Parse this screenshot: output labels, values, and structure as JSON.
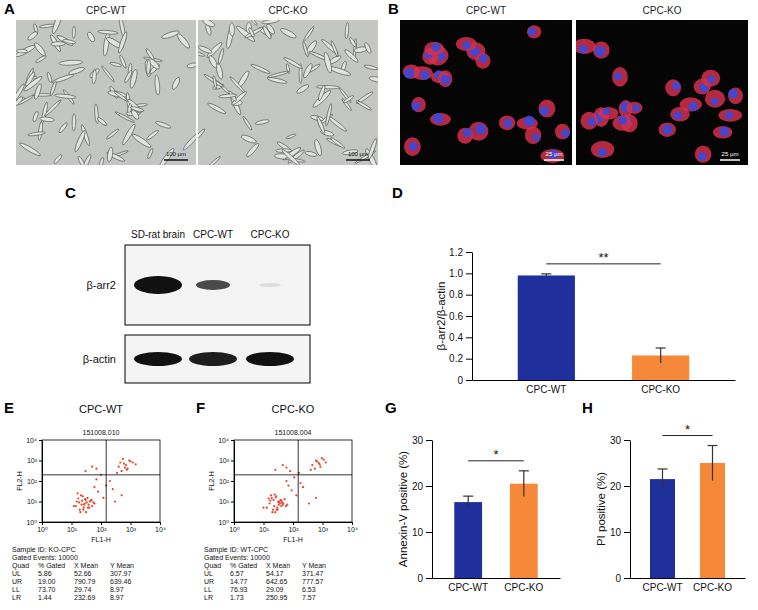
{
  "images": [
    {
      "panel": "A",
      "titles": [
        "CPC-WT",
        "CPC-KO"
      ],
      "scale_bar": "100 μm"
    },
    {
      "panel": "B",
      "titles": [
        "CPC-WT",
        "CPC-KO"
      ],
      "scale_bar": "25 μm"
    }
  ],
  "blot": {
    "panel": "C",
    "lanes": [
      "SD-rat brain",
      "CPC-WT",
      "CPC-KO"
    ],
    "rows": [
      "β-arr2",
      "β-actin"
    ]
  },
  "chart_data": [
    {
      "panel": "D",
      "type": "bar",
      "categories": [
        "CPC-WT",
        "CPC-KO"
      ],
      "values": [
        0.98,
        0.23
      ],
      "errors": [
        0.015,
        0.07
      ],
      "colors": [
        "#1f2f9c",
        "#f58839"
      ],
      "ylabel": "β-arr2/β-actin",
      "ylim": [
        0,
        1.2
      ],
      "yticks": [
        0,
        0.2,
        0.4,
        0.6,
        0.8,
        {
          "value": 1,
          "label": "1.0"
        },
        1.2
      ],
      "annotations": [
        "**"
      ]
    },
    {
      "panel": "E",
      "type": "scatter",
      "title": "CPC-WT",
      "subtitle": "151008.010",
      "xlabel": "FL1-H",
      "ylabel": "FL2-H",
      "log": true,
      "color": "#e8432e",
      "xlim": [
        1,
        10000
      ],
      "ylim": [
        1,
        10000
      ],
      "xticks": [
        {
          "value": 1,
          "label": "10⁰"
        },
        {
          "value": 10,
          "label": "10¹"
        },
        {
          "value": 100,
          "label": "10²"
        },
        {
          "value": 1000,
          "label": "10³"
        },
        {
          "value": 10000,
          "label": "10⁴"
        }
      ],
      "yticks": [
        {
          "value": 1,
          "label": "10⁰"
        },
        {
          "value": 10,
          "label": "10¹"
        },
        {
          "value": 100,
          "label": "10²"
        },
        {
          "value": 1000,
          "label": "10³"
        },
        {
          "value": 10000,
          "label": "10⁴"
        }
      ],
      "x": [
        12,
        18,
        25,
        30,
        22,
        15,
        40,
        35,
        28,
        20,
        45,
        50,
        17,
        26,
        33,
        38,
        24,
        19,
        60,
        14,
        29,
        42,
        21,
        36,
        55,
        31,
        23,
        27,
        16,
        48,
        80,
        120,
        150,
        200,
        60,
        100,
        250,
        70,
        400,
        600,
        800,
        1000,
        500,
        700,
        900,
        1200,
        350,
        650,
        1500,
        550,
        750,
        450,
        30,
        50,
        70,
        300,
        500
      ],
      "values": [
        6,
        9,
        4,
        12,
        7,
        10,
        5,
        15,
        8,
        3,
        11,
        6,
        14,
        5,
        9,
        7,
        18,
        4,
        8,
        6,
        13,
        10,
        20,
        5,
        9,
        3,
        11,
        7,
        25,
        12,
        30,
        15,
        60,
        100,
        50,
        200,
        40,
        120,
        500,
        700,
        400,
        900,
        300,
        600,
        1000,
        800,
        250,
        450,
        650,
        1200,
        350,
        800,
        300,
        500,
        400,
        10,
        20
      ],
      "gates": {
        "x": 150,
        "y": 200
      },
      "stats": {
        "lines": [
          "Sample ID: KO-CPC",
          "Gated Events: 10000"
        ],
        "header": [
          "Quad",
          "% Gated",
          "X Mean",
          "Y Mean"
        ],
        "rows": [
          [
            "UL",
            "5.86",
            "52.66",
            "307.97"
          ],
          [
            "UR",
            "19.00",
            "790.79",
            "639.46"
          ],
          [
            "LL",
            "73.70",
            "29.74",
            "8.97"
          ],
          [
            "LR",
            "1.44",
            "232.69",
            "8.97"
          ]
        ]
      }
    },
    {
      "panel": "F",
      "type": "scatter",
      "title": "CPC-KO",
      "subtitle": "151008.004",
      "xlabel": "FL1-H",
      "ylabel": "FL2-H",
      "log": true,
      "color": "#e8432e",
      "xlim": [
        1,
        10000
      ],
      "ylim": [
        1,
        10000
      ],
      "xticks": [
        {
          "value": 1,
          "label": "10⁰"
        },
        {
          "value": 10,
          "label": "10¹"
        },
        {
          "value": 100,
          "label": "10²"
        },
        {
          "value": 1000,
          "label": "10³"
        },
        {
          "value": 10000,
          "label": "10⁴"
        }
      ],
      "yticks": [
        {
          "value": 1,
          "label": "10⁰"
        },
        {
          "value": 10,
          "label": "10¹"
        },
        {
          "value": 100,
          "label": "10²"
        },
        {
          "value": 1000,
          "label": "10³"
        },
        {
          "value": 10000,
          "label": "10⁴"
        }
      ],
      "x": [
        10,
        16,
        22,
        28,
        34,
        40,
        19,
        25,
        31,
        45,
        52,
        13,
        27,
        37,
        21,
        17,
        58,
        24,
        33,
        43,
        15,
        29,
        38,
        20,
        26,
        47,
        35,
        23,
        18,
        30,
        41,
        64,
        90,
        130,
        180,
        70,
        110,
        220,
        60,
        160,
        450,
        650,
        850,
        1100,
        550,
        750,
        950,
        400,
        1300,
        600,
        800,
        25,
        45,
        60,
        80,
        350,
        600
      ],
      "values": [
        5,
        8,
        12,
        4,
        9,
        6,
        15,
        3,
        10,
        7,
        13,
        5,
        18,
        8,
        4,
        11,
        6,
        22,
        7,
        9,
        14,
        5,
        12,
        3,
        16,
        8,
        10,
        6,
        20,
        4,
        11,
        7,
        35,
        20,
        80,
        60,
        150,
        50,
        100,
        250,
        600,
        900,
        500,
        1100,
        400,
        750,
        1300,
        350,
        800,
        1000,
        650,
        350,
        600,
        450,
        300,
        8,
        15
      ],
      "gates": {
        "x": 150,
        "y": 200
      },
      "stats": {
        "lines": [
          "Sample ID: WT-CPC",
          "Gated Events: 10000"
        ],
        "header": [
          "Quad",
          "% Gated",
          "X Mean",
          "Y Mean"
        ],
        "rows": [
          [
            "UL",
            "6.57",
            "54.17",
            "371.47"
          ],
          [
            "UR",
            "14.77",
            "642.65",
            "777.57"
          ],
          [
            "LL",
            "76.93",
            "29.09",
            "6.53"
          ],
          [
            "LR",
            "1.73",
            "250.95",
            "7.57"
          ]
        ]
      }
    },
    {
      "panel": "G",
      "type": "bar",
      "categories": [
        "CPC-WT",
        "CPC-KO"
      ],
      "values": [
        16.5,
        20.5
      ],
      "errors": [
        1.3,
        2.8
      ],
      "colors": [
        "#1f2f9c",
        "#f58839"
      ],
      "ylabel": "Annexin-V positive (%)",
      "ylim": [
        0,
        30
      ],
      "yticks": [
        0,
        10,
        20,
        30
      ],
      "annotations": [
        "*"
      ]
    },
    {
      "panel": "H",
      "type": "bar",
      "categories": [
        "CPC-WT",
        "CPC-KO"
      ],
      "values": [
        21.5,
        25
      ],
      "errors": [
        2.2,
        3.8
      ],
      "colors": [
        "#1f2f9c",
        "#f58839"
      ],
      "ylabel": "PI positive (%)",
      "ylim": [
        0,
        30
      ],
      "yticks": [
        0,
        10,
        20,
        30
      ],
      "annotations": [
        "*"
      ]
    }
  ]
}
